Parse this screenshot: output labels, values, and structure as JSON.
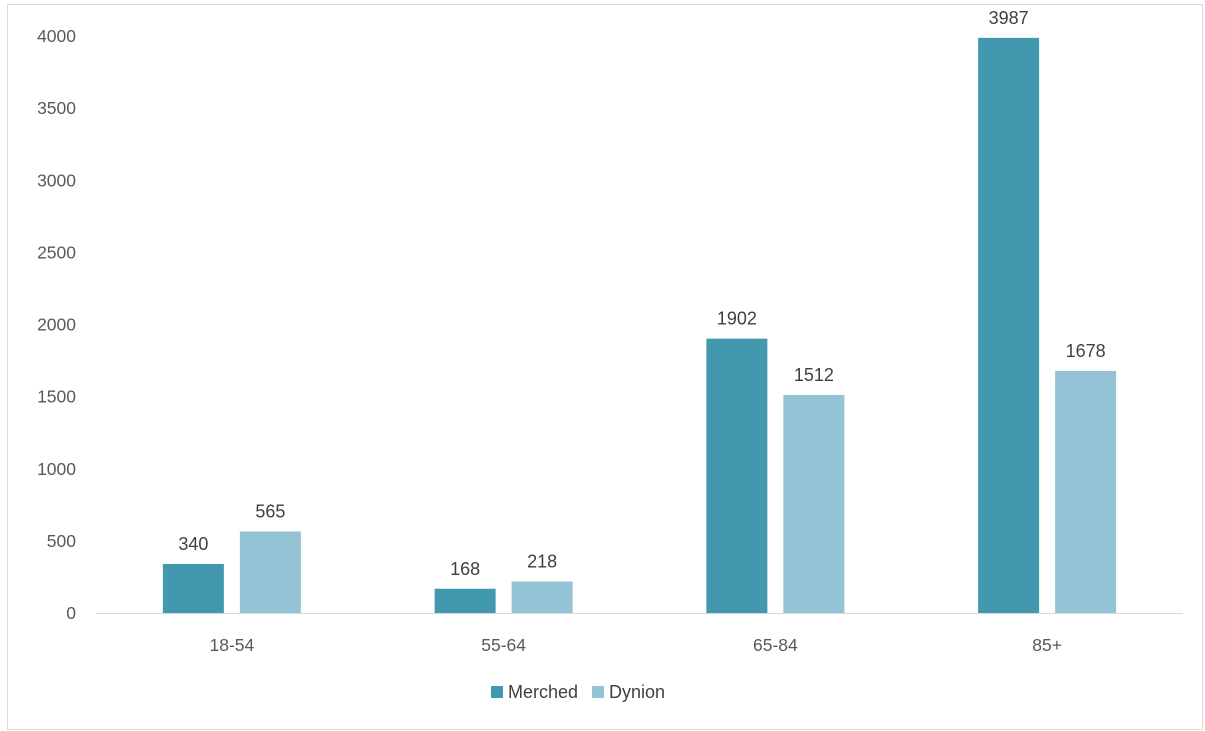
{
  "chart_data": {
    "type": "bar",
    "categories": [
      "18-54",
      "55-64",
      "65-84",
      "85+"
    ],
    "series": [
      {
        "name": "Merched",
        "color": "#4198AF",
        "values": [
          340,
          168,
          1902,
          3987
        ]
      },
      {
        "name": "Dynion",
        "color": "#93C3D5",
        "values": [
          565,
          218,
          1512,
          1678
        ]
      }
    ],
    "title": "",
    "xlabel": "",
    "ylabel": "",
    "ylim": [
      0,
      4000
    ],
    "yticks": [
      0,
      500,
      1000,
      1500,
      2000,
      2500,
      3000,
      3500,
      4000
    ],
    "grid": false,
    "legend_position": "bottom",
    "data_labels": true
  }
}
